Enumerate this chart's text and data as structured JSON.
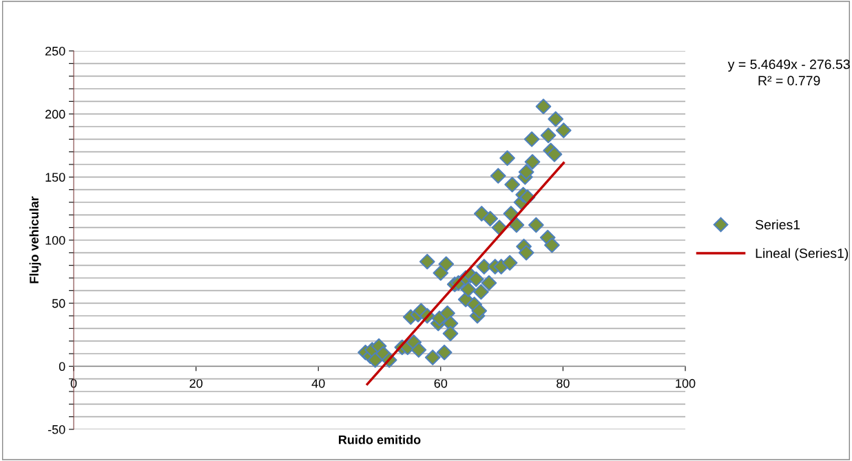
{
  "chart_data": {
    "type": "scatter",
    "xlabel": "Ruido emitido",
    "ylabel": "Flujo vehicular",
    "xlim": [
      0,
      100
    ],
    "xticks": [
      0,
      20,
      40,
      60,
      80,
      100
    ],
    "ylim": [
      -50,
      250
    ],
    "yticks": [
      -50,
      {
        "value": -40,
        "label": null
      },
      {
        "value": -30,
        "label": null
      },
      {
        "value": -20,
        "label": null
      },
      {
        "value": -10,
        "label": null
      },
      0,
      {
        "value": 10,
        "label": null
      },
      {
        "value": 20,
        "label": null
      },
      {
        "value": 30,
        "label": null
      },
      {
        "value": 40,
        "label": null
      },
      50,
      {
        "value": 60,
        "label": null
      },
      {
        "value": 70,
        "label": null
      },
      {
        "value": 80,
        "label": null
      },
      {
        "value": 90,
        "label": null
      },
      100,
      {
        "value": 110,
        "label": null
      },
      {
        "value": 120,
        "label": null
      },
      {
        "value": 130,
        "label": null
      },
      {
        "value": 140,
        "label": null
      },
      150,
      {
        "value": 160,
        "label": null
      },
      {
        "value": 170,
        "label": null
      },
      {
        "value": 180,
        "label": null
      },
      {
        "value": 190,
        "label": null
      },
      200,
      {
        "value": 210,
        "label": null
      },
      {
        "value": 220,
        "label": null
      },
      {
        "value": 230,
        "label": null
      },
      {
        "value": 240,
        "label": null
      },
      250
    ],
    "grid": "y",
    "legend": "right",
    "marker": "diamond",
    "annotations": [
      "y = 5.4649x - 276.53",
      "R² = 0.779"
    ],
    "series": [
      {
        "name": "Series1",
        "color": "#77933c",
        "x": [
          47.7,
          48.5,
          48.8,
          49.3,
          49.9,
          50.6,
          51.6,
          53.7,
          54.6,
          55.6,
          55.1,
          56.3,
          56.8,
          57.8,
          56.4,
          57.8,
          58.7,
          60.0,
          60.9,
          59.6,
          59.8,
          60.6,
          61.1,
          61.6,
          61.6,
          62.3,
          62.9,
          64.1,
          64.1,
          64.5,
          64.9,
          65.5,
          65.8,
          66.0,
          66.3,
          66.6,
          66.7,
          67.1,
          67.9,
          68.1,
          68.9,
          69.4,
          69.6,
          69.9,
          70.9,
          71.3,
          71.5,
          71.7,
          72.4,
          73.2,
          73.5,
          73.6,
          74.0,
          73.8,
          74.0,
          74.2,
          74.9,
          75.0,
          75.6,
          76.8,
          77.5,
          78.2,
          77.6,
          78.0,
          78.6,
          78.8,
          80.1
        ],
        "values": [
          11,
          8,
          13,
          5,
          16,
          10,
          5,
          15,
          15,
          19,
          39,
          41,
          44,
          40,
          13,
          83,
          7,
          74,
          81,
          34,
          38,
          11,
          42,
          34,
          26,
          65,
          66,
          53,
          70,
          61,
          72,
          49,
          69,
          40,
          44,
          59,
          121,
          79,
          66,
          117,
          79,
          151,
          110,
          79,
          165,
          82,
          121,
          144,
          112,
          130,
          136,
          95,
          90,
          150,
          154,
          134,
          180,
          162,
          112,
          206,
          102,
          96,
          183,
          171,
          168,
          196,
          187
        ]
      },
      {
        "name": "Lineal (Series1)",
        "type": "line",
        "color": "#c00000",
        "marker": "none",
        "line_style": "solid",
        "x": [
          48.0,
          80.1
        ],
        "values": [
          -14.2,
          161.2
        ]
      }
    ]
  }
}
